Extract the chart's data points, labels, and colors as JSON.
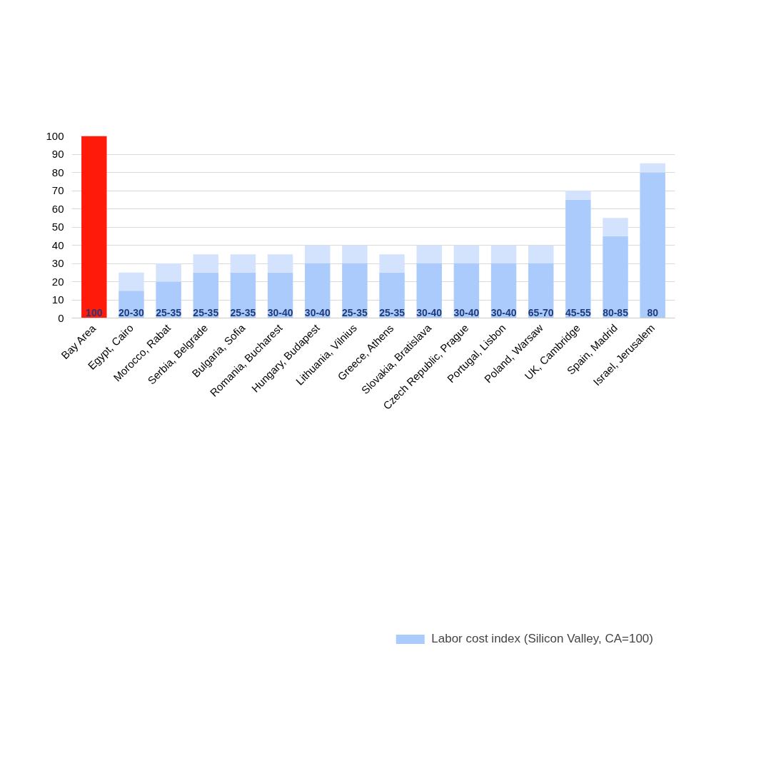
{
  "chart_data": {
    "type": "bar",
    "stacked": true,
    "categories": [
      "Bay Area",
      "Egypt, Cairo",
      "Morocco, Rabat",
      "Serbia, Belgrade",
      "Bulgaria, Sofia",
      "Romania, Bucharest",
      "Hungary, Budapest",
      "Lithuania, Vilnius",
      "Greece, Athens",
      "Slovakia, Bratislava",
      "Czech Republic, Prague",
      "Portugal, Lisbon",
      "Poland, Warsaw",
      "UK, Cambridge",
      "Spain, Madrid",
      "Israel, Jerusalem"
    ],
    "series": [
      {
        "name": "Labor cost index (Silicon Valley, CA=100)",
        "color": "#abcbfd",
        "colors": [
          "#ff1a0a",
          "#abcbfd",
          "#abcbfd",
          "#abcbfd",
          "#abcbfd",
          "#abcbfd",
          "#abcbfd",
          "#abcbfd",
          "#abcbfd",
          "#abcbfd",
          "#abcbfd",
          "#abcbfd",
          "#abcbfd",
          "#abcbfd",
          "#abcbfd",
          "#abcbfd"
        ],
        "values": [
          100,
          15,
          20,
          25,
          25,
          25,
          30,
          30,
          25,
          30,
          30,
          30,
          30,
          65,
          45,
          80
        ],
        "value_labels": [
          "100",
          "20-30",
          "25-35",
          "25-35",
          "25-35",
          "30-40",
          "30-40",
          "25-35",
          "25-35",
          "30-40",
          "30-40",
          "30-40",
          "65-70",
          "45-55",
          "80-85",
          "80"
        ]
      },
      {
        "color": "#d4e3fd",
        "values": [
          0,
          10,
          10,
          10,
          10,
          10,
          10,
          10,
          10,
          10,
          10,
          10,
          10,
          5,
          10,
          5
        ]
      }
    ],
    "ylim": [
      0,
      100
    ],
    "yticks": [
      0,
      10,
      20,
      30,
      40,
      50,
      60,
      70,
      80,
      90,
      100
    ],
    "grid": "y",
    "legend": "bottom"
  }
}
